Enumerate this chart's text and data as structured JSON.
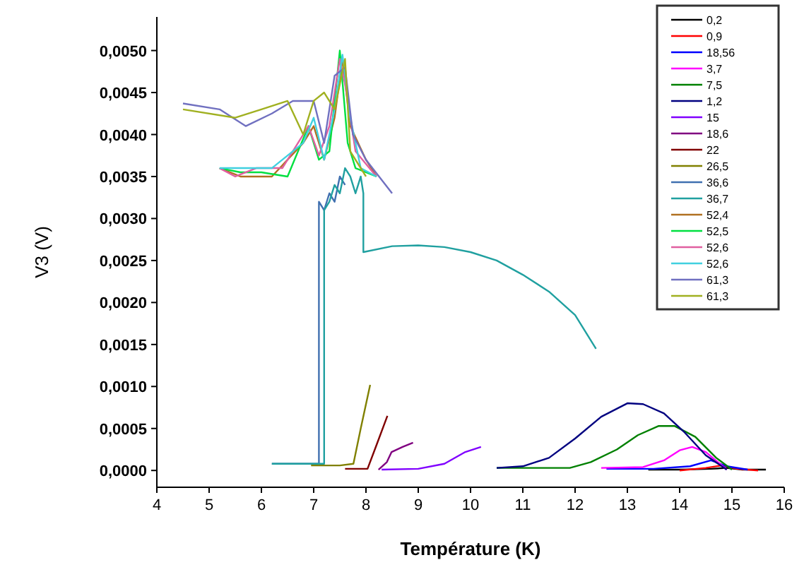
{
  "chart_data": {
    "type": "line",
    "xlabel": "Température (K)",
    "ylabel": "V3 (V)",
    "xlim": [
      4,
      16
    ],
    "ylim": [
      -0.0002,
      0.0054
    ],
    "xticks": [
      4,
      5,
      6,
      7,
      8,
      9,
      10,
      11,
      12,
      13,
      14,
      15,
      16
    ],
    "yticks": [
      {
        "value": 0,
        "label": "0,0000"
      },
      {
        "value": 0.0005,
        "label": "0,0005"
      },
      {
        "value": 0.001,
        "label": "0,0010"
      },
      {
        "value": 0.0015,
        "label": "0,0015"
      },
      {
        "value": 0.002,
        "label": "0,0020"
      },
      {
        "value": 0.0025,
        "label": "0,0025"
      },
      {
        "value": 0.003,
        "label": "0,0030"
      },
      {
        "value": 0.0035,
        "label": "0,0035"
      },
      {
        "value": 0.004,
        "label": "0,0040"
      },
      {
        "value": 0.0045,
        "label": "0,0045"
      },
      {
        "value": 0.005,
        "label": "0,0050"
      }
    ],
    "grid": false,
    "legend": "top right",
    "marker": "none",
    "line_style": "solid",
    "series": [
      {
        "name": "0,2",
        "color": "#000000",
        "x": [
          13.4,
          14.0,
          14.6,
          14.9,
          15.2,
          15.65
        ],
        "values": [
          1e-05,
          1e-05,
          2e-05,
          3e-05,
          1e-05,
          1e-05
        ]
      },
      {
        "name": "0,9",
        "color": "#ff0000",
        "x": [
          14.0,
          14.5,
          14.8,
          15.1,
          15.5
        ],
        "values": [
          0,
          3e-05,
          6e-05,
          2e-05,
          0
        ]
      },
      {
        "name": "18,56",
        "color": "#0000ff",
        "x": [
          12.6,
          13.5,
          14.2,
          14.6,
          14.9,
          15.3
        ],
        "values": [
          2e-05,
          2e-05,
          5e-05,
          0.00012,
          5e-05,
          1e-05
        ]
      },
      {
        "name": "3,7",
        "color": "#ff00ff",
        "x": [
          12.5,
          13.3,
          13.7,
          14.0,
          14.24,
          14.5,
          14.9
        ],
        "values": [
          3e-05,
          4e-05,
          0.00012,
          0.00024,
          0.00028,
          0.00022,
          1e-05
        ]
      },
      {
        "name": "7,5",
        "color": "#008000",
        "x": [
          10.5,
          11.9,
          12.3,
          12.8,
          13.2,
          13.6,
          13.9,
          14.3,
          14.7,
          15.0
        ],
        "values": [
          3e-05,
          3e-05,
          0.0001,
          0.00025,
          0.00042,
          0.00053,
          0.00053,
          0.0004,
          0.00015,
          1e-05
        ]
      },
      {
        "name": "1,2",
        "color": "#000080",
        "x": [
          10.5,
          11.0,
          11.5,
          12.0,
          12.5,
          13.0,
          13.3,
          13.7,
          14.1,
          14.5,
          14.9
        ],
        "values": [
          3e-05,
          5e-05,
          0.00015,
          0.00038,
          0.00064,
          0.0008,
          0.00079,
          0.00068,
          0.00045,
          0.00018,
          1e-05
        ]
      },
      {
        "name": "15",
        "color": "#8000ff",
        "x": [
          8.3,
          9.0,
          9.5,
          9.9,
          10.2
        ],
        "values": [
          1e-05,
          2e-05,
          8e-05,
          0.00022,
          0.00028
        ]
      },
      {
        "name": "18,6",
        "color": "#800080",
        "x": [
          8.24,
          8.4,
          8.49,
          8.7,
          8.9
        ],
        "values": [
          1e-05,
          0.0001,
          0.00022,
          0.00028,
          0.00033
        ]
      },
      {
        "name": "22",
        "color": "#800000",
        "x": [
          7.6,
          8.03,
          8.2,
          8.41
        ],
        "values": [
          2e-05,
          2e-05,
          0.0003,
          0.00065
        ]
      },
      {
        "name": "26,5",
        "color": "#808000",
        "x": [
          6.95,
          7.5,
          7.76,
          7.9,
          8.08
        ],
        "values": [
          6e-05,
          6e-05,
          8e-05,
          0.0005,
          0.00102
        ]
      },
      {
        "name": "36,6",
        "color": "#4070b0",
        "x": [
          6.2,
          7.1,
          7.1,
          7.2,
          7.3,
          7.4,
          7.5,
          7.6
        ],
        "values": [
          8e-05,
          8e-05,
          0.0032,
          0.0031,
          0.0033,
          0.0032,
          0.0035,
          0.0034
        ]
      },
      {
        "name": "36,7",
        "color": "#20a0a0",
        "x": [
          6.2,
          7.2,
          7.2,
          7.3,
          7.4,
          7.5,
          7.6,
          7.7,
          7.8,
          7.9,
          7.95,
          7.95,
          8.5,
          9.0,
          9.5,
          10.0,
          10.5,
          11.0,
          11.5,
          12.0,
          12.4
        ],
        "values": [
          8e-05,
          8e-05,
          0.0031,
          0.0032,
          0.0034,
          0.0033,
          0.0036,
          0.0035,
          0.0033,
          0.0035,
          0.0033,
          0.0026,
          0.00267,
          0.00268,
          0.00266,
          0.0026,
          0.0025,
          0.00233,
          0.00213,
          0.00185,
          0.00145
        ]
      },
      {
        "name": "52,4",
        "color": "#b07020",
        "x": [
          5.2,
          5.6,
          6.2,
          6.8,
          7.0,
          7.2,
          7.4,
          7.55,
          7.7,
          8.0,
          8.2
        ],
        "values": [
          0.0036,
          0.0035,
          0.0035,
          0.0039,
          0.0041,
          0.0037,
          0.0042,
          0.0049,
          0.0041,
          0.0037,
          0.0035
        ]
      },
      {
        "name": "52,5",
        "color": "#00e040",
        "x": [
          5.2,
          5.6,
          6.0,
          6.5,
          6.9,
          7.1,
          7.3,
          7.5,
          7.65,
          7.8,
          8.2
        ],
        "values": [
          0.0036,
          0.00355,
          0.00355,
          0.0035,
          0.0041,
          0.0037,
          0.0038,
          0.005,
          0.0039,
          0.0036,
          0.0035
        ]
      },
      {
        "name": "52,6",
        "color": "#e060a0",
        "x": [
          5.2,
          5.5,
          5.9,
          6.4,
          6.9,
          7.1,
          7.3,
          7.5,
          7.6,
          7.8,
          8.2
        ],
        "values": [
          0.0036,
          0.0035,
          0.0036,
          0.0036,
          0.0041,
          0.00375,
          0.0041,
          0.0049,
          0.0046,
          0.0038,
          0.0035
        ]
      },
      {
        "name": "52,6",
        "color": "#40d0e0",
        "x": [
          5.2,
          5.7,
          6.2,
          6.8,
          7.0,
          7.2,
          7.4,
          7.55,
          7.7,
          7.9,
          8.2
        ],
        "values": [
          0.0036,
          0.0036,
          0.0036,
          0.0039,
          0.0042,
          0.0037,
          0.0043,
          0.00495,
          0.0042,
          0.0036,
          0.0035
        ]
      },
      {
        "name": "61,3",
        "color": "#7070c0",
        "x": [
          4.5,
          5.2,
          5.7,
          6.2,
          6.6,
          7.0,
          7.2,
          7.4,
          7.6,
          7.75,
          8.0,
          8.5
        ],
        "values": [
          0.00437,
          0.0043,
          0.0041,
          0.00425,
          0.0044,
          0.0044,
          0.0039,
          0.0047,
          0.0048,
          0.004,
          0.0037,
          0.0033
        ]
      },
      {
        "name": "61,3",
        "color": "#a0b020",
        "x": [
          4.5,
          5.5,
          6.0,
          6.5,
          6.8,
          7.0,
          7.2,
          7.4,
          7.6,
          7.7,
          8.0
        ],
        "values": [
          0.0043,
          0.0042,
          0.0043,
          0.0044,
          0.004,
          0.0044,
          0.0045,
          0.0043,
          0.0049,
          0.0038,
          0.0035
        ]
      }
    ]
  }
}
